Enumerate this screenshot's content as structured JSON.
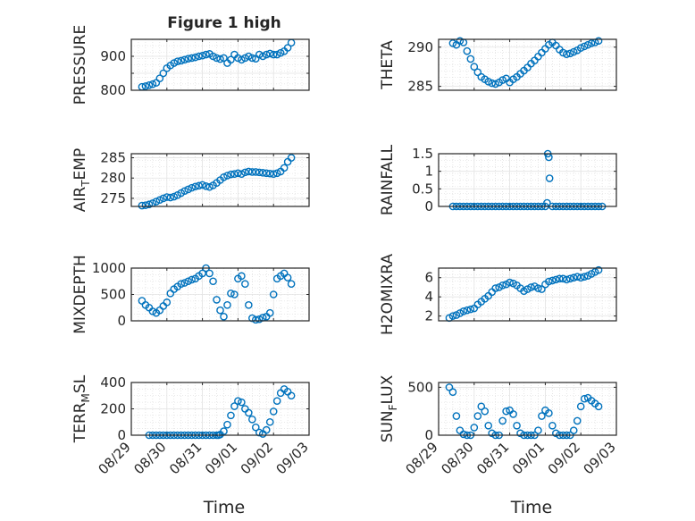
{
  "figure_title": "Figure 1 high",
  "x_tick_labels": [
    "08/29",
    "08/30",
    "08/31",
    "09/01",
    "09/02",
    "09/03"
  ],
  "x_label": "Time",
  "marker_color": "#0072BD",
  "chart_data": [
    {
      "type": "scatter",
      "ylabel": "PRESSURE",
      "ylim": [
        800,
        950
      ],
      "yticks": [
        800,
        850,
        900
      ],
      "ytick_labels": [
        "800",
        "",
        "900"
      ],
      "xlim": [
        0,
        5
      ],
      "x": [
        0.3,
        0.4,
        0.5,
        0.6,
        0.7,
        0.8,
        0.9,
        1.0,
        1.1,
        1.2,
        1.3,
        1.4,
        1.5,
        1.6,
        1.7,
        1.8,
        1.9,
        2.0,
        2.1,
        2.2,
        2.3,
        2.4,
        2.5,
        2.6,
        2.7,
        2.8,
        2.9,
        3.0,
        3.1,
        3.2,
        3.3,
        3.4,
        3.5,
        3.6,
        3.7,
        3.8,
        3.9,
        4.0,
        4.1,
        4.2,
        4.3,
        4.4,
        4.5
      ],
      "y": [
        810,
        812,
        815,
        818,
        822,
        835,
        850,
        865,
        873,
        880,
        885,
        887,
        890,
        893,
        895,
        897,
        900,
        902,
        905,
        907,
        900,
        895,
        892,
        895,
        880,
        890,
        905,
        895,
        890,
        895,
        900,
        895,
        893,
        905,
        900,
        905,
        908,
        905,
        905,
        910,
        915,
        925,
        940
      ]
    },
    {
      "type": "scatter",
      "ylabel": "THETA",
      "ylim": [
        284.5,
        291
      ],
      "yticks": [
        285,
        290
      ],
      "ytick_labels": [
        "285",
        "290"
      ],
      "xlim": [
        0,
        5
      ],
      "x": [
        0.4,
        0.5,
        0.6,
        0.7,
        0.8,
        0.9,
        1.0,
        1.1,
        1.2,
        1.3,
        1.4,
        1.5,
        1.6,
        1.7,
        1.8,
        1.9,
        2.0,
        2.1,
        2.2,
        2.3,
        2.4,
        2.5,
        2.6,
        2.7,
        2.8,
        2.9,
        3.0,
        3.1,
        3.2,
        3.3,
        3.4,
        3.5,
        3.6,
        3.7,
        3.8,
        3.9,
        4.0,
        4.1,
        4.2,
        4.3,
        4.4,
        4.5
      ],
      "y": [
        290.5,
        290.3,
        290.8,
        290.6,
        289.5,
        288.5,
        287.5,
        286.8,
        286.2,
        285.9,
        285.6,
        285.4,
        285.3,
        285.5,
        285.8,
        286.0,
        285.5,
        285.9,
        286.2,
        286.6,
        287.0,
        287.4,
        287.9,
        288.3,
        288.8,
        289.3,
        289.8,
        290.3,
        290.6,
        290.2,
        289.7,
        289.3,
        289.1,
        289.2,
        289.4,
        289.6,
        289.9,
        290.1,
        290.3,
        290.5,
        290.6,
        290.8
      ]
    },
    {
      "type": "scatter",
      "ylabel": "AIR_TEMP",
      "ylim": [
        273,
        286
      ],
      "yticks": [
        275,
        280,
        285
      ],
      "ytick_labels": [
        "275",
        "280",
        "285"
      ],
      "xlim": [
        0,
        5
      ],
      "x": [
        0.3,
        0.4,
        0.5,
        0.6,
        0.7,
        0.8,
        0.9,
        1.0,
        1.1,
        1.2,
        1.3,
        1.4,
        1.5,
        1.6,
        1.7,
        1.8,
        1.9,
        2.0,
        2.1,
        2.2,
        2.3,
        2.4,
        2.5,
        2.6,
        2.7,
        2.8,
        2.9,
        3.0,
        3.1,
        3.2,
        3.3,
        3.4,
        3.5,
        3.6,
        3.7,
        3.8,
        3.9,
        4.0,
        4.1,
        4.2,
        4.3,
        4.4,
        4.5
      ],
      "y": [
        273.2,
        273.3,
        273.5,
        273.8,
        274.2,
        274.6,
        275.0,
        275.3,
        275.2,
        275.4,
        275.8,
        276.3,
        276.8,
        277.2,
        277.6,
        277.9,
        278.1,
        278.3,
        278.0,
        277.8,
        278.2,
        278.8,
        279.5,
        280.2,
        280.6,
        280.9,
        281.0,
        281.2,
        281.0,
        281.4,
        281.6,
        281.5,
        281.5,
        281.4,
        281.3,
        281.2,
        281.1,
        281.0,
        281.2,
        281.6,
        282.5,
        284.0,
        285.0
      ]
    },
    {
      "type": "scatter",
      "ylabel": "RAINFALL",
      "ylim": [
        0,
        1.5
      ],
      "yticks": [
        0,
        0.5,
        1,
        1.5
      ],
      "ytick_labels": [
        "0",
        "0.5",
        "1",
        "1.5"
      ],
      "xlim": [
        0,
        5
      ],
      "x": [
        0.4,
        0.5,
        0.6,
        0.7,
        0.8,
        0.9,
        1.0,
        1.1,
        1.2,
        1.3,
        1.4,
        1.5,
        1.6,
        1.7,
        1.8,
        1.9,
        2.0,
        2.1,
        2.2,
        2.3,
        2.4,
        2.5,
        2.6,
        2.7,
        2.8,
        2.9,
        3.0,
        3.05,
        3.07,
        3.1,
        3.12,
        3.2,
        3.3,
        3.4,
        3.5,
        3.6,
        3.7,
        3.8,
        3.9,
        4.0,
        4.1,
        4.2,
        4.3,
        4.4,
        4.5,
        4.6
      ],
      "y": [
        0,
        0,
        0,
        0,
        0,
        0,
        0,
        0,
        0,
        0,
        0,
        0,
        0,
        0,
        0,
        0,
        0,
        0,
        0,
        0,
        0,
        0,
        0,
        0,
        0,
        0,
        0,
        0.1,
        1.5,
        1.4,
        0.8,
        0,
        0,
        0,
        0,
        0,
        0,
        0,
        0,
        0,
        0,
        0,
        0,
        0,
        0,
        0
      ]
    },
    {
      "type": "scatter",
      "ylabel": "MIXDEPTH",
      "ylim": [
        0,
        1000
      ],
      "yticks": [
        0,
        500,
        1000
      ],
      "ytick_labels": [
        "0",
        "500",
        "1000"
      ],
      "xlim": [
        0,
        5
      ],
      "x": [
        0.3,
        0.4,
        0.5,
        0.6,
        0.7,
        0.8,
        0.9,
        1.0,
        1.1,
        1.2,
        1.3,
        1.4,
        1.5,
        1.6,
        1.7,
        1.8,
        1.9,
        2.0,
        2.1,
        2.2,
        2.3,
        2.4,
        2.5,
        2.6,
        2.7,
        2.8,
        2.9,
        3.0,
        3.1,
        3.2,
        3.3,
        3.4,
        3.5,
        3.6,
        3.7,
        3.8,
        3.9,
        4.0,
        4.1,
        4.2,
        4.3,
        4.4,
        4.5
      ],
      "y": [
        380,
        300,
        250,
        180,
        150,
        200,
        280,
        350,
        520,
        600,
        650,
        700,
        720,
        750,
        780,
        800,
        850,
        900,
        1000,
        900,
        750,
        400,
        200,
        80,
        300,
        520,
        500,
        800,
        850,
        700,
        300,
        50,
        20,
        30,
        60,
        80,
        150,
        500,
        800,
        850,
        900,
        820,
        700
      ]
    },
    {
      "type": "scatter",
      "ylabel": "H2OMIXRA",
      "ylim": [
        1.5,
        7
      ],
      "yticks": [
        2,
        4,
        6
      ],
      "ytick_labels": [
        "2",
        "4",
        "6"
      ],
      "xlim": [
        0,
        5
      ],
      "x": [
        0.3,
        0.4,
        0.5,
        0.6,
        0.7,
        0.8,
        0.9,
        1.0,
        1.1,
        1.2,
        1.3,
        1.4,
        1.5,
        1.6,
        1.7,
        1.8,
        1.9,
        2.0,
        2.1,
        2.2,
        2.3,
        2.4,
        2.5,
        2.6,
        2.7,
        2.8,
        2.9,
        3.0,
        3.1,
        3.2,
        3.3,
        3.4,
        3.5,
        3.6,
        3.7,
        3.8,
        3.9,
        4.0,
        4.1,
        4.2,
        4.3,
        4.4,
        4.5
      ],
      "y": [
        1.8,
        2.0,
        2.1,
        2.3,
        2.5,
        2.6,
        2.7,
        2.8,
        3.2,
        3.5,
        3.8,
        4.1,
        4.5,
        4.9,
        5.0,
        5.2,
        5.3,
        5.5,
        5.4,
        5.2,
        4.9,
        4.6,
        4.8,
        5.0,
        5.1,
        4.9,
        4.8,
        5.3,
        5.6,
        5.7,
        5.8,
        5.9,
        5.9,
        5.8,
        5.9,
        6.0,
        6.1,
        6.0,
        6.1,
        6.2,
        6.4,
        6.6,
        6.8
      ]
    },
    {
      "type": "scatter",
      "ylabel": "TERR_MSL",
      "ylim": [
        0,
        400
      ],
      "yticks": [
        0,
        200,
        400
      ],
      "ytick_labels": [
        "0",
        "200",
        "400"
      ],
      "xlim": [
        0,
        5
      ],
      "x": [
        0.5,
        0.6,
        0.7,
        0.8,
        0.9,
        1.0,
        1.1,
        1.2,
        1.3,
        1.4,
        1.5,
        1.6,
        1.7,
        1.8,
        1.9,
        2.0,
        2.1,
        2.2,
        2.3,
        2.4,
        2.45,
        2.5,
        2.6,
        2.7,
        2.8,
        2.9,
        3.0,
        3.1,
        3.2,
        3.3,
        3.4,
        3.5,
        3.6,
        3.7,
        3.8,
        3.9,
        4.0,
        4.1,
        4.2,
        4.3,
        4.4,
        4.5
      ],
      "y": [
        0,
        0,
        0,
        0,
        0,
        0,
        0,
        0,
        0,
        0,
        0,
        0,
        0,
        0,
        0,
        0,
        0,
        0,
        0,
        0,
        0,
        5,
        30,
        80,
        150,
        220,
        260,
        250,
        200,
        170,
        120,
        60,
        20,
        10,
        40,
        100,
        180,
        260,
        320,
        350,
        330,
        300
      ]
    },
    {
      "type": "scatter",
      "ylabel": "SUN_FLUX",
      "ylim": [
        0,
        550
      ],
      "yticks": [
        0,
        500
      ],
      "ytick_labels": [
        "0",
        "500"
      ],
      "xlim": [
        0,
        5
      ],
      "x": [
        0.3,
        0.4,
        0.5,
        0.6,
        0.7,
        0.8,
        0.9,
        1.0,
        1.1,
        1.2,
        1.3,
        1.4,
        1.5,
        1.6,
        1.7,
        1.8,
        1.9,
        2.0,
        2.1,
        2.2,
        2.3,
        2.4,
        2.5,
        2.6,
        2.7,
        2.8,
        2.9,
        3.0,
        3.1,
        3.2,
        3.3,
        3.4,
        3.5,
        3.6,
        3.7,
        3.8,
        3.9,
        4.0,
        4.1,
        4.2,
        4.3,
        4.4,
        4.5
      ],
      "y": [
        500,
        450,
        200,
        50,
        10,
        0,
        0,
        80,
        200,
        300,
        250,
        100,
        20,
        0,
        0,
        150,
        250,
        260,
        220,
        100,
        20,
        0,
        0,
        0,
        0,
        50,
        200,
        260,
        230,
        100,
        20,
        0,
        0,
        0,
        0,
        50,
        150,
        300,
        380,
        390,
        360,
        330,
        300
      ]
    }
  ]
}
